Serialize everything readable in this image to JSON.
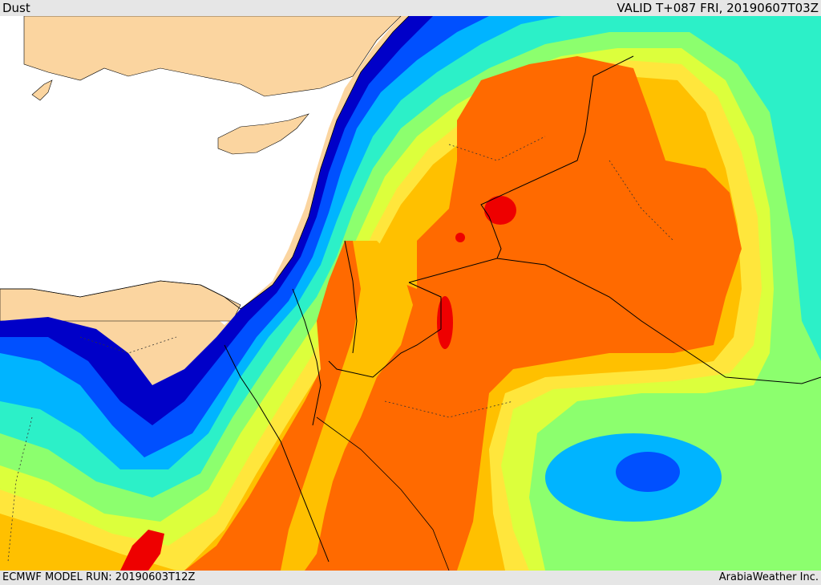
{
  "header": {
    "title": "Dust",
    "valid": "VALID T+087 FRI, 20190607T03Z"
  },
  "footer": {
    "model_run": "ECMWF MODEL RUN: 20190603T12Z",
    "credit": "ArabiaWeather Inc."
  },
  "map": {
    "variable": "Dust",
    "colors": {
      "land": "#fbd5a0",
      "sea": "#ffffff",
      "navy": "#0000c8",
      "blue": "#0050ff",
      "sky": "#00b4ff",
      "cyan": "#2cf0c8",
      "lightgreen": "#8cff6e",
      "yellowgreen": "#dcff3c",
      "yellow": "#ffe63c",
      "orange": "#ffc000",
      "darkorange": "#ff6a00",
      "red": "#ee0000"
    }
  }
}
